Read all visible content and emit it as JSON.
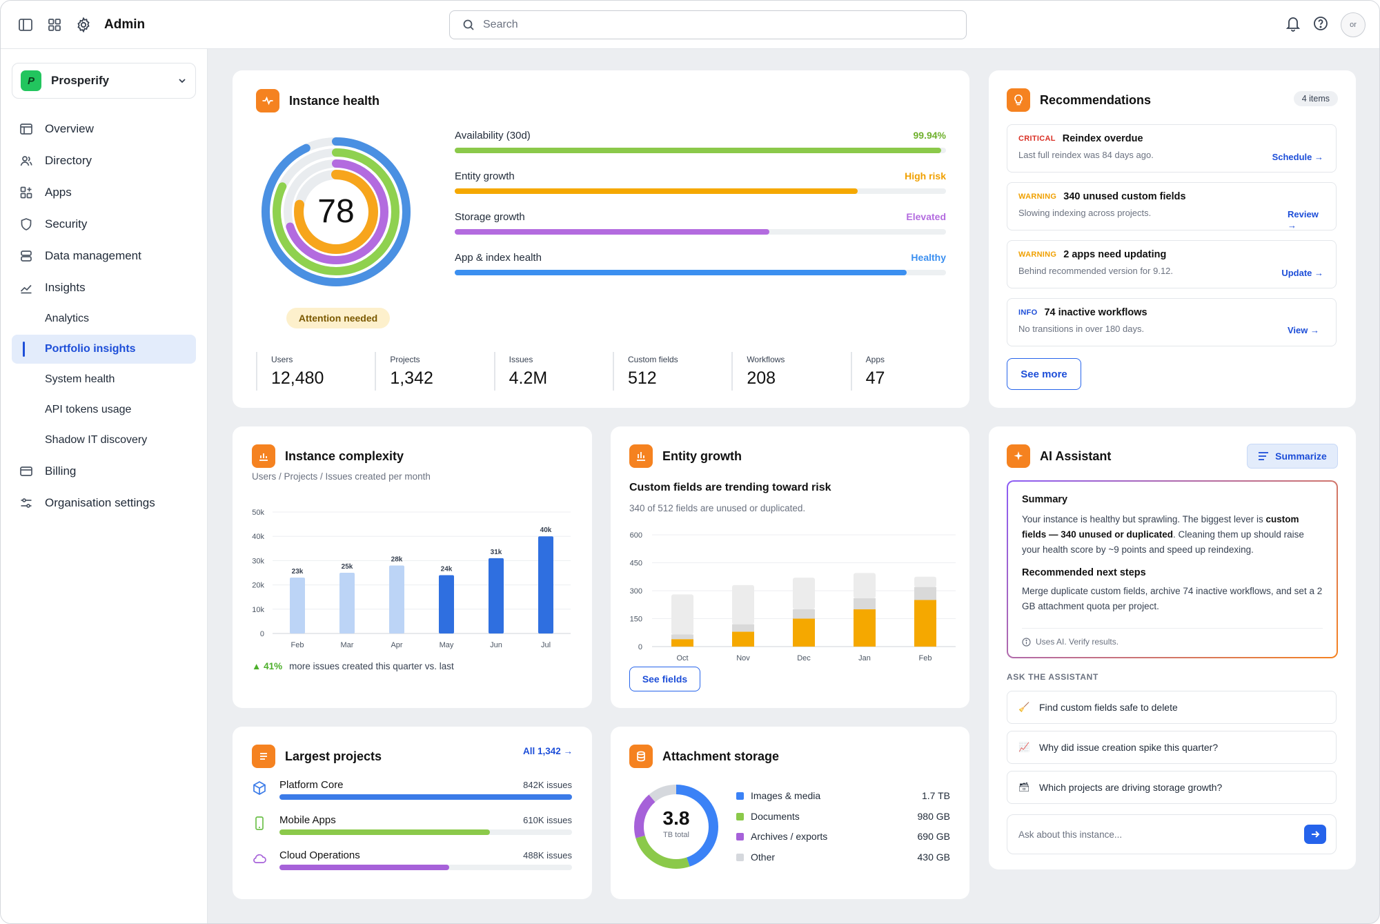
{
  "header": {
    "title": "Admin",
    "search_placeholder": "Search",
    "avatar_text": "or"
  },
  "sidebar": {
    "org_logo": "P",
    "org_name": "Prosperify",
    "items": [
      {
        "label": "Overview",
        "icon": "layout-icon"
      },
      {
        "label": "Directory",
        "icon": "users-icon"
      },
      {
        "label": "Apps",
        "icon": "apps-icon"
      },
      {
        "label": "Security",
        "icon": "shield-icon"
      },
      {
        "label": "Data management",
        "icon": "database-icon"
      },
      {
        "label": "Insights",
        "icon": "chart-line-icon"
      }
    ],
    "insights_sub": [
      "Analytics",
      "Portfolio insights",
      "System health",
      "API tokens usage",
      "Shadow IT discovery"
    ],
    "active_sub": "Portfolio insights",
    "bottom_items": [
      {
        "label": "Billing",
        "icon": "card-icon"
      },
      {
        "label": "Organisation settings",
        "icon": "sliders-icon"
      }
    ]
  },
  "instance_health": {
    "title": "Instance health",
    "score": "78",
    "status": "Attention needed",
    "rings": [
      {
        "color": "#4a90e2",
        "fraction": 0.93
      },
      {
        "color": "#8fd14f",
        "fraction": 0.82
      },
      {
        "color": "#b36bdf",
        "fraction": 0.7
      },
      {
        "color": "#f7a51c",
        "fraction": 0.78
      }
    ],
    "metrics": [
      {
        "label": "Availability (30d)",
        "value": "99.94%",
        "color": "#8bc94a",
        "text_color": "#6fb02d",
        "fraction": 0.99
      },
      {
        "label": "Entity growth",
        "value": "High risk",
        "color": "#f5a800",
        "text_color": "#f0a000",
        "fraction": 0.82
      },
      {
        "label": "Storage growth",
        "value": "Elevated",
        "color": "#b36bdf",
        "text_color": "#b36bdf",
        "fraction": 0.64
      },
      {
        "label": "App & index health",
        "value": "Healthy",
        "color": "#3b8ff0",
        "text_color": "#3b8ff0",
        "fraction": 0.92
      }
    ],
    "stats": [
      {
        "label": "Users",
        "value": "12,480"
      },
      {
        "label": "Projects",
        "value": "1,342"
      },
      {
        "label": "Issues",
        "value": "4.2M"
      },
      {
        "label": "Custom fields",
        "value": "512"
      },
      {
        "label": "Workflows",
        "value": "208"
      },
      {
        "label": "Apps",
        "value": "47"
      }
    ]
  },
  "recommendations": {
    "title": "Recommendations",
    "count": "4 items",
    "items": [
      {
        "severity": "CRITICAL",
        "color": "#d93025",
        "title": "Reindex overdue",
        "desc": "Last full reindex was 84 days ago.",
        "action": "Schedule →"
      },
      {
        "severity": "WARNING",
        "color": "#f0a000",
        "title": "340 unused custom fields",
        "desc": "Slowing indexing across projects.",
        "action": "Review →"
      },
      {
        "severity": "WARNING",
        "color": "#f0a000",
        "title": "2 apps need updating",
        "desc": "Behind recommended version for 9.12.",
        "action": "Update →"
      },
      {
        "severity": "INFO",
        "color": "#1d4ed8",
        "title": "74 inactive workflows",
        "desc": "No transitions in over 180 days.",
        "action": "View →"
      }
    ],
    "see_more": "See more"
  },
  "complexity": {
    "title": "Instance complexity",
    "subtitle": "Users / Projects / Issues created per month",
    "footer_delta": "▲ 41%",
    "footer_text": "more issues created this quarter vs. last"
  },
  "entity_growth": {
    "title": "Entity growth",
    "headline": "Custom fields are trending toward risk",
    "subtitle": "340 of 512 fields are unused or duplicated.",
    "button": "See fields"
  },
  "largest_projects": {
    "title": "Largest projects",
    "link": "All 1,342 →",
    "items": [
      {
        "name": "Platform Core",
        "value": "842K issues",
        "color": "#3b7be8",
        "fraction": 1.0,
        "icon": "cube-icon"
      },
      {
        "name": "Mobile Apps",
        "value": "610K issues",
        "color": "#8bc94a",
        "fraction": 0.72,
        "icon": "phone-icon"
      },
      {
        "name": "Cloud Operations",
        "value": "488K issues",
        "color": "#a661d9",
        "fraction": 0.58,
        "icon": "cloud-icon"
      }
    ]
  },
  "attachment_storage": {
    "title": "Attachment storage",
    "total": "3.8",
    "total_unit": "TB total"
  },
  "ai_assistant": {
    "title": "AI Assistant",
    "summarize": "Summarize",
    "summary_title": "Summary",
    "summary_pre": "Your instance is healthy but sprawling. The biggest lever is ",
    "summary_bold": "custom fields — 340 unused or duplicated",
    "summary_post": ". Cleaning them up should raise your health score by ~9 points and speed up reindexing.",
    "steps_title": "Recommended next steps",
    "steps_text": "Merge duplicate custom fields, archive 74 inactive workflows, and set a 2 GB attachment quota per project.",
    "disclaimer": "Uses AI. Verify results.",
    "ask_label": "ASK THE ASSISTANT",
    "suggestions": [
      {
        "icon": "🧹",
        "text": "Find custom fields safe to delete"
      },
      {
        "icon": "📈",
        "text": "Why did issue creation spike this quarter?"
      },
      {
        "icon": "🗃",
        "text": "Which projects are driving storage growth?"
      }
    ],
    "input_placeholder": "Ask about this instance..."
  },
  "chart_data": [
    {
      "type": "bar",
      "title": "Instance complexity",
      "categories": [
        "Feb",
        "Mar",
        "Apr",
        "May",
        "Jun",
        "Jul"
      ],
      "values": [
        23000,
        25000,
        28000,
        24000,
        31000,
        40000
      ],
      "data_labels": [
        "23k",
        "25k",
        "28k",
        "24k",
        "31k",
        "40k"
      ],
      "colors": [
        "#bcd4f6",
        "#bcd4f6",
        "#bcd4f6",
        "#2f6fe0",
        "#2f6fe0",
        "#2f6fe0"
      ],
      "ylim": [
        0,
        50000
      ],
      "ytick_labels": [
        "0",
        "10k",
        "20k",
        "30k",
        "40k",
        "50k"
      ],
      "grid": true
    },
    {
      "type": "bar",
      "stacked": true,
      "title": "Entity growth",
      "categories": [
        "Oct",
        "Nov",
        "Dec",
        "Jan",
        "Feb"
      ],
      "series": [
        {
          "color": "#f5a800",
          "values": [
            40,
            80,
            150,
            200,
            250
          ]
        },
        {
          "color": "#d9d9d9",
          "values": [
            25,
            40,
            50,
            60,
            70
          ]
        },
        {
          "color": "#ececec",
          "values": [
            215,
            210,
            170,
            135,
            55
          ]
        }
      ],
      "ylim": [
        0,
        600
      ],
      "yticks": [
        0,
        150,
        300,
        450,
        600
      ],
      "grid": true
    },
    {
      "type": "pie",
      "title": "Attachment storage",
      "labels": [
        "Images & media",
        "Documents",
        "Archives / exports",
        "Other"
      ],
      "values": [
        1.7,
        0.98,
        0.69,
        0.43
      ],
      "value_labels": [
        "1.7 TB",
        "980 GB",
        "690 GB",
        "430 GB"
      ],
      "colors": [
        "#3b82f6",
        "#8bc94a",
        "#a661d9",
        "#d5d8dd"
      ]
    }
  ]
}
